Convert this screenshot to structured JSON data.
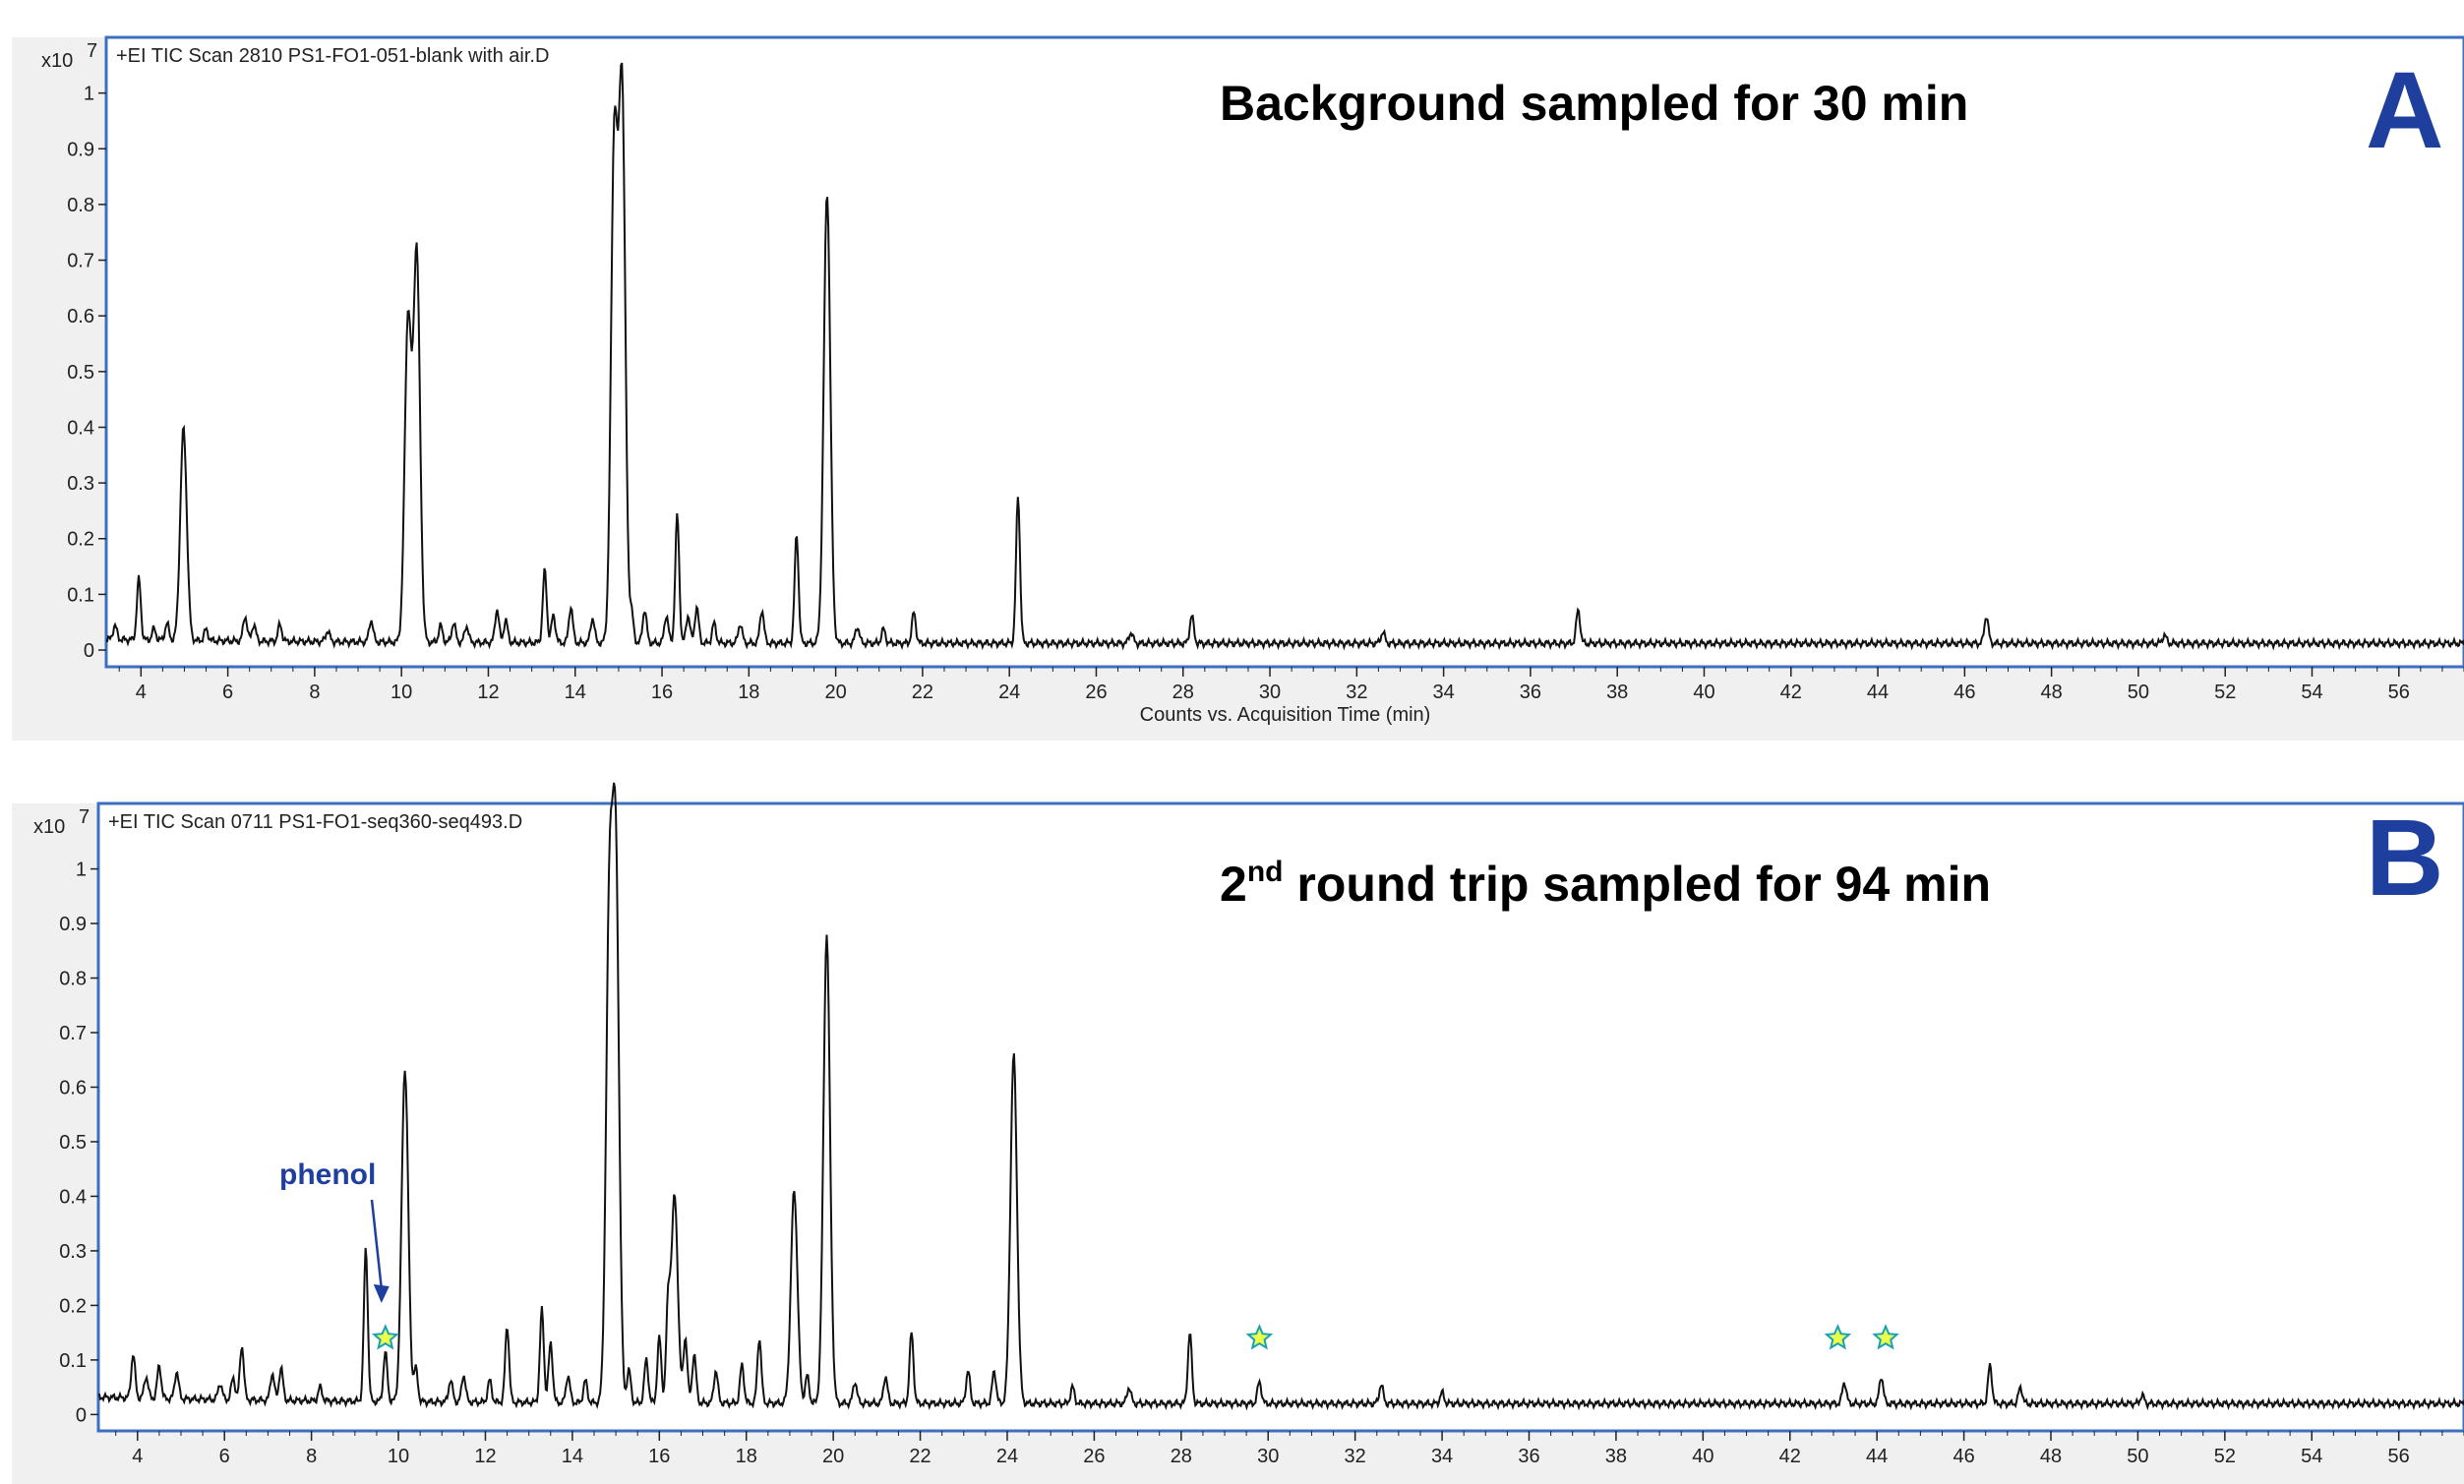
{
  "chart_data": [
    {
      "type": "line",
      "panel_letter": "A",
      "scan_title": "+EI TIC Scan 2810 PS1-FO1-051-blank with air.D",
      "annotation": "Background sampled for 30 min",
      "y_multiplier": "x10",
      "y_exponent": "7",
      "xlabel": "Counts vs. Acquisition Time (min)",
      "xlim": [
        3.2,
        57.5
      ],
      "ylim": [
        -0.03,
        1.1
      ],
      "x_ticks": [
        4,
        6,
        8,
        10,
        12,
        14,
        16,
        18,
        20,
        22,
        24,
        26,
        28,
        30,
        32,
        34,
        36,
        38,
        40,
        42,
        44,
        46,
        48,
        50,
        52,
        54,
        56
      ],
      "y_ticks": [
        0,
        0.1,
        0.2,
        0.3,
        0.4,
        0.5,
        0.6,
        0.7,
        0.8,
        0.9,
        1
      ],
      "y_tick_labels": [
        "0",
        "0.1",
        "0.2",
        "0.3",
        "0.4",
        "0.5",
        "0.6",
        "0.7",
        "0.8",
        "0.9",
        "1"
      ],
      "baseline": 0.012,
      "peaks": [
        {
          "x": 3.4,
          "y": 0.025
        },
        {
          "x": 3.95,
          "y": 0.11
        },
        {
          "x": 4.3,
          "y": 0.02
        },
        {
          "x": 4.6,
          "y": 0.03
        },
        {
          "x": 4.98,
          "y": 0.38
        },
        {
          "x": 5.5,
          "y": 0.02
        },
        {
          "x": 6.4,
          "y": 0.045
        },
        {
          "x": 6.6,
          "y": 0.03
        },
        {
          "x": 7.2,
          "y": 0.03
        },
        {
          "x": 8.3,
          "y": 0.02
        },
        {
          "x": 9.3,
          "y": 0.04
        },
        {
          "x": 10.15,
          "y": 0.58
        },
        {
          "x": 10.35,
          "y": 0.7
        },
        {
          "x": 10.9,
          "y": 0.03
        },
        {
          "x": 11.2,
          "y": 0.035
        },
        {
          "x": 11.5,
          "y": 0.03
        },
        {
          "x": 12.2,
          "y": 0.06
        },
        {
          "x": 12.4,
          "y": 0.04
        },
        {
          "x": 13.3,
          "y": 0.13
        },
        {
          "x": 13.5,
          "y": 0.05
        },
        {
          "x": 13.9,
          "y": 0.065
        },
        {
          "x": 14.4,
          "y": 0.045
        },
        {
          "x": 14.9,
          "y": 0.9
        },
        {
          "x": 15.08,
          "y": 0.99
        },
        {
          "x": 15.3,
          "y": 0.05
        },
        {
          "x": 15.6,
          "y": 0.06
        },
        {
          "x": 16.1,
          "y": 0.05
        },
        {
          "x": 16.35,
          "y": 0.23
        },
        {
          "x": 16.6,
          "y": 0.05
        },
        {
          "x": 16.8,
          "y": 0.065
        },
        {
          "x": 17.2,
          "y": 0.035
        },
        {
          "x": 17.8,
          "y": 0.035
        },
        {
          "x": 18.3,
          "y": 0.06
        },
        {
          "x": 19.1,
          "y": 0.195
        },
        {
          "x": 19.8,
          "y": 0.81
        },
        {
          "x": 20.5,
          "y": 0.03
        },
        {
          "x": 21.1,
          "y": 0.025
        },
        {
          "x": 21.8,
          "y": 0.055
        },
        {
          "x": 24.2,
          "y": 0.265
        },
        {
          "x": 26.8,
          "y": 0.02
        },
        {
          "x": 28.2,
          "y": 0.05
        },
        {
          "x": 32.6,
          "y": 0.02
        },
        {
          "x": 37.1,
          "y": 0.06
        },
        {
          "x": 46.5,
          "y": 0.05
        },
        {
          "x": 50.6,
          "y": 0.015
        }
      ]
    },
    {
      "type": "line",
      "panel_letter": "B",
      "scan_title": "+EI TIC Scan 0711 PS1-FO1-seq360-seq493.D",
      "annotation_main": "2",
      "annotation_sup": "nd",
      "annotation_rest": " round trip sampled for 94 min",
      "y_multiplier": "x10",
      "y_exponent": "7",
      "xlim": [
        3.1,
        57.5
      ],
      "ylim": [
        -0.03,
        1.12
      ],
      "x_ticks": [
        4,
        6,
        8,
        10,
        12,
        14,
        16,
        18,
        20,
        22,
        24,
        26,
        28,
        30,
        32,
        34,
        36,
        38,
        40,
        42,
        44,
        46,
        48,
        50,
        52,
        54,
        56
      ],
      "y_ticks": [
        0,
        0.1,
        0.2,
        0.3,
        0.4,
        0.5,
        0.6,
        0.7,
        0.8,
        0.9,
        1
      ],
      "y_tick_labels": [
        "0",
        "0.1",
        "0.2",
        "0.3",
        "0.4",
        "0.5",
        "0.6",
        "0.7",
        "0.8",
        "0.9",
        "1"
      ],
      "baseline": 0.02,
      "peak_annotation": {
        "text": "phenol",
        "x": 9.7
      },
      "star_markers": [
        9.7,
        29.8,
        43.1,
        44.2
      ],
      "star_y": 0.14,
      "peaks": [
        {
          "x": 3.9,
          "y": 0.08
        },
        {
          "x": 4.2,
          "y": 0.04
        },
        {
          "x": 4.5,
          "y": 0.06
        },
        {
          "x": 4.9,
          "y": 0.05
        },
        {
          "x": 5.9,
          "y": 0.03
        },
        {
          "x": 6.2,
          "y": 0.04
        },
        {
          "x": 6.4,
          "y": 0.1
        },
        {
          "x": 7.1,
          "y": 0.05
        },
        {
          "x": 7.3,
          "y": 0.06
        },
        {
          "x": 8.2,
          "y": 0.025
        },
        {
          "x": 9.25,
          "y": 0.28
        },
        {
          "x": 9.7,
          "y": 0.09
        },
        {
          "x": 10.15,
          "y": 0.61
        },
        {
          "x": 10.4,
          "y": 0.06
        },
        {
          "x": 11.2,
          "y": 0.04
        },
        {
          "x": 11.5,
          "y": 0.05
        },
        {
          "x": 12.1,
          "y": 0.04
        },
        {
          "x": 12.5,
          "y": 0.14
        },
        {
          "x": 13.3,
          "y": 0.17
        },
        {
          "x": 13.5,
          "y": 0.11
        },
        {
          "x": 13.9,
          "y": 0.05
        },
        {
          "x": 14.3,
          "y": 0.04
        },
        {
          "x": 14.85,
          "y": 0.88
        },
        {
          "x": 15.0,
          "y": 0.96
        },
        {
          "x": 15.3,
          "y": 0.06
        },
        {
          "x": 15.7,
          "y": 0.08
        },
        {
          "x": 16.0,
          "y": 0.12
        },
        {
          "x": 16.2,
          "y": 0.16
        },
        {
          "x": 16.35,
          "y": 0.38
        },
        {
          "x": 16.6,
          "y": 0.12
        },
        {
          "x": 16.8,
          "y": 0.09
        },
        {
          "x": 17.3,
          "y": 0.06
        },
        {
          "x": 17.9,
          "y": 0.07
        },
        {
          "x": 18.3,
          "y": 0.12
        },
        {
          "x": 19.1,
          "y": 0.39
        },
        {
          "x": 19.4,
          "y": 0.05
        },
        {
          "x": 19.85,
          "y": 0.86
        },
        {
          "x": 20.5,
          "y": 0.04
        },
        {
          "x": 21.2,
          "y": 0.05
        },
        {
          "x": 21.8,
          "y": 0.13
        },
        {
          "x": 23.1,
          "y": 0.06
        },
        {
          "x": 23.7,
          "y": 0.06
        },
        {
          "x": 24.15,
          "y": 0.64
        },
        {
          "x": 25.5,
          "y": 0.03
        },
        {
          "x": 26.8,
          "y": 0.03
        },
        {
          "x": 28.2,
          "y": 0.13
        },
        {
          "x": 29.8,
          "y": 0.04
        },
        {
          "x": 32.6,
          "y": 0.035
        },
        {
          "x": 34.0,
          "y": 0.02
        },
        {
          "x": 43.25,
          "y": 0.04
        },
        {
          "x": 44.1,
          "y": 0.05
        },
        {
          "x": 46.6,
          "y": 0.07
        },
        {
          "x": 47.3,
          "y": 0.03
        },
        {
          "x": 50.1,
          "y": 0.015
        }
      ]
    }
  ]
}
